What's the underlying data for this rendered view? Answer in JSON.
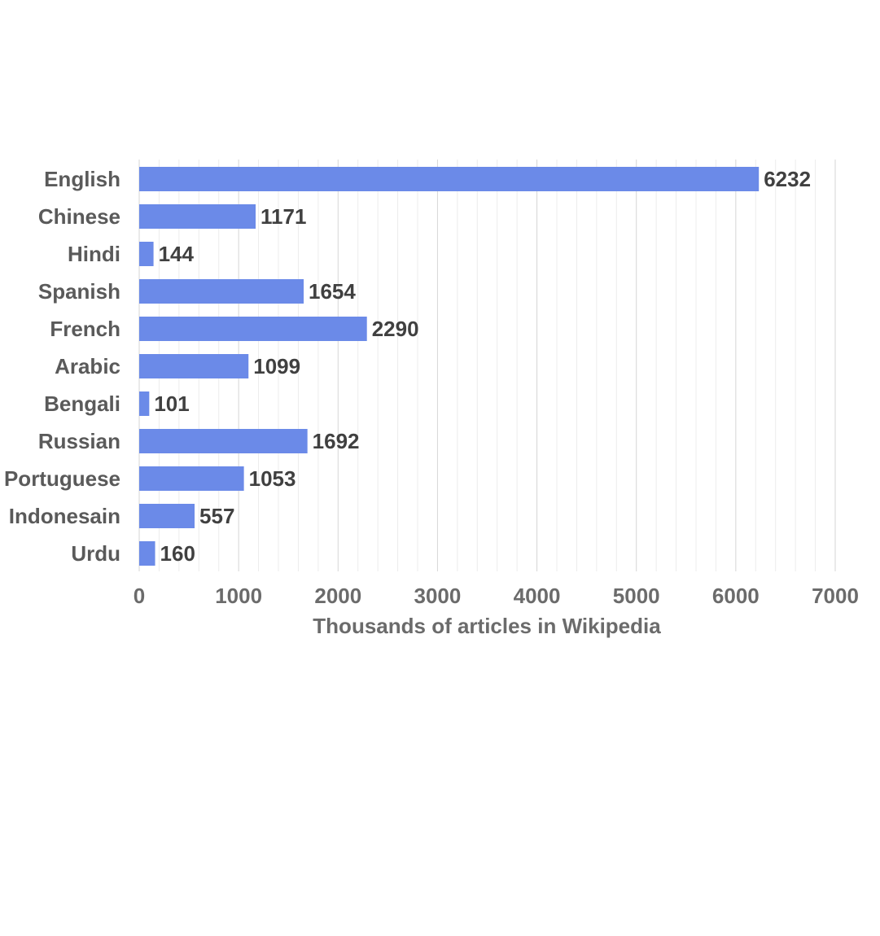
{
  "chart_data": {
    "type": "bar",
    "orientation": "horizontal",
    "categories": [
      "English",
      "Chinese",
      "Hindi",
      "Spanish",
      "French",
      "Arabic",
      "Bengali",
      "Russian",
      "Portuguese",
      "Indonesain",
      "Urdu"
    ],
    "values": [
      6232,
      1171,
      144,
      1654,
      2290,
      1099,
      101,
      1692,
      1053,
      557,
      160
    ],
    "data_labels": [
      "6232",
      "1171",
      "144",
      "1654",
      "2290",
      "1099",
      "101",
      "1692",
      "1053",
      "557",
      "160"
    ],
    "title": "",
    "xlabel": "Thousands of articles in Wikipedia",
    "ylabel": "",
    "xlim": [
      0,
      7000
    ],
    "x_ticks": [
      0,
      1000,
      2000,
      3000,
      4000,
      5000,
      6000,
      7000
    ],
    "x_tick_labels": [
      "0",
      "1000",
      "2000",
      "3000",
      "4000",
      "5000",
      "6000",
      "7000"
    ],
    "minor_gridlines_every": 200,
    "grid": true,
    "legend": "none"
  },
  "colors": {
    "bar": "#6B8AE8",
    "category_label": "#5a5a5a",
    "tick_label": "#6b6b6b",
    "axis_title": "#6b6b6b",
    "data_label": "#404040",
    "major_grid": "#d6d6d6",
    "minor_grid": "#ececec"
  }
}
